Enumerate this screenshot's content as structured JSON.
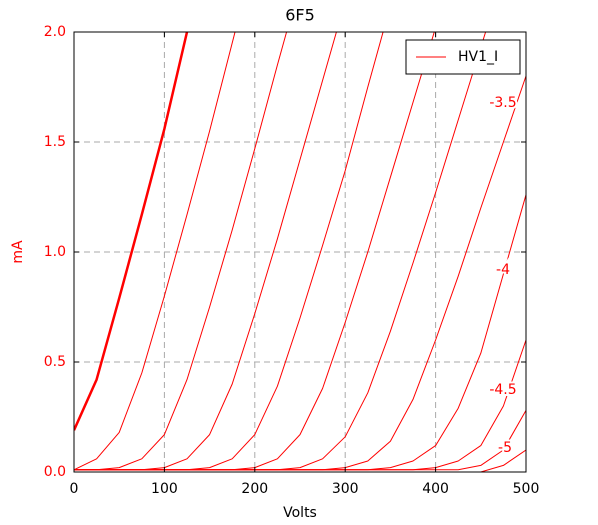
{
  "chart_data": {
    "type": "line",
    "title": "6F5",
    "xlabel": "Volts",
    "ylabel": "mA",
    "x": [
      0,
      25,
      50,
      75,
      100,
      125,
      150,
      175,
      200,
      225,
      250,
      275,
      300,
      325,
      350,
      375,
      400,
      425,
      450,
      475,
      500
    ],
    "series": [
      {
        "name": "HV1_I",
        "color": "#ff0000",
        "linewidth": 2.5,
        "values": [
          0.19,
          0.42,
          0.79,
          1.17,
          1.56,
          2.0,
          null,
          null,
          null,
          null,
          null,
          null,
          null,
          null,
          null,
          null,
          null,
          null,
          null,
          null,
          null
        ]
      },
      {
        "color": "#ff0000",
        "values": [
          0.01,
          0.06,
          0.18,
          0.45,
          0.8,
          1.17,
          1.55,
          1.95,
          2.35,
          null,
          null,
          null,
          null,
          null,
          null,
          null,
          null,
          null,
          null,
          null,
          null
        ]
      },
      {
        "color": "#ff0000",
        "values": [
          0.01,
          0.01,
          0.02,
          0.06,
          0.17,
          0.42,
          0.75,
          1.1,
          1.47,
          1.85,
          2.22,
          null,
          null,
          null,
          null,
          null,
          null,
          null,
          null,
          null,
          null
        ]
      },
      {
        "color": "#ff0000",
        "values": [
          0.01,
          0.01,
          0.01,
          0.01,
          0.02,
          0.06,
          0.17,
          0.4,
          0.72,
          1.06,
          1.42,
          1.78,
          2.14,
          null,
          null,
          null,
          null,
          null,
          null,
          null,
          null
        ]
      },
      {
        "color": "#ff0000",
        "values": [
          0.01,
          0.01,
          0.01,
          0.01,
          0.01,
          0.01,
          0.02,
          0.06,
          0.17,
          0.39,
          0.7,
          1.03,
          1.37,
          1.75,
          2.12,
          null,
          null,
          null,
          null,
          null,
          null
        ]
      },
      {
        "color": "#ff0000",
        "values": [
          0.01,
          0.01,
          0.01,
          0.01,
          0.01,
          0.01,
          0.01,
          0.01,
          0.02,
          0.06,
          0.17,
          0.38,
          0.68,
          1.0,
          1.34,
          1.68,
          2.02,
          null,
          null,
          null,
          null
        ]
      },
      {
        "color": "#ff0000",
        "values": [
          0.01,
          0.01,
          0.01,
          0.01,
          0.01,
          0.01,
          0.01,
          0.01,
          0.01,
          0.01,
          0.02,
          0.06,
          0.16,
          0.36,
          0.64,
          0.95,
          1.27,
          1.6,
          1.93,
          2.26,
          null
        ]
      },
      {
        "color": "#ff0000",
        "values": [
          0.01,
          0.01,
          0.01,
          0.01,
          0.01,
          0.01,
          0.01,
          0.01,
          0.01,
          0.01,
          0.01,
          0.01,
          0.02,
          0.05,
          0.14,
          0.33,
          0.6,
          0.89,
          1.2,
          1.5,
          1.8
        ]
      },
      {
        "color": "#ff0000",
        "values": [
          0.01,
          0.01,
          0.01,
          0.01,
          0.01,
          0.01,
          0.01,
          0.01,
          0.01,
          0.01,
          0.01,
          0.01,
          0.01,
          0.01,
          0.02,
          0.05,
          0.12,
          0.29,
          0.54,
          0.9,
          1.26
        ]
      },
      {
        "color": "#ff0000",
        "values": [
          0.01,
          0.01,
          0.01,
          0.01,
          0.01,
          0.01,
          0.01,
          0.01,
          0.01,
          0.01,
          0.01,
          0.01,
          0.01,
          0.01,
          0.01,
          0.01,
          0.02,
          0.05,
          0.12,
          0.3,
          0.6
        ]
      },
      {
        "color": "#ff0000",
        "values": [
          0.01,
          0.01,
          0.01,
          0.01,
          0.01,
          0.01,
          0.01,
          0.01,
          0.01,
          0.01,
          0.01,
          0.01,
          0.01,
          0.01,
          0.01,
          0.01,
          0.01,
          0.01,
          0.03,
          0.1,
          0.28
        ]
      },
      {
        "color": "#ff0000",
        "values": [
          0,
          0,
          0,
          0,
          0,
          0,
          0,
          0,
          0,
          0,
          0,
          0,
          0,
          0,
          0,
          0,
          0,
          0,
          0,
          0.03,
          0.1
        ]
      }
    ],
    "annotations": [
      "-3.5",
      "-4",
      "-4.5",
      "-5"
    ],
    "xlim": [
      0,
      500
    ],
    "xticks": [
      0,
      100,
      200,
      300,
      400,
      500
    ],
    "ylim": [
      0,
      2
    ],
    "yticks": [
      {
        "value": 0,
        "label": "0.0"
      },
      0.5,
      {
        "value": 1,
        "label": "1.0"
      },
      1.5,
      {
        "value": 2,
        "label": "2.0"
      }
    ],
    "grid": true,
    "legend": "upper right",
    "axis_label_color": "#ff0000"
  }
}
